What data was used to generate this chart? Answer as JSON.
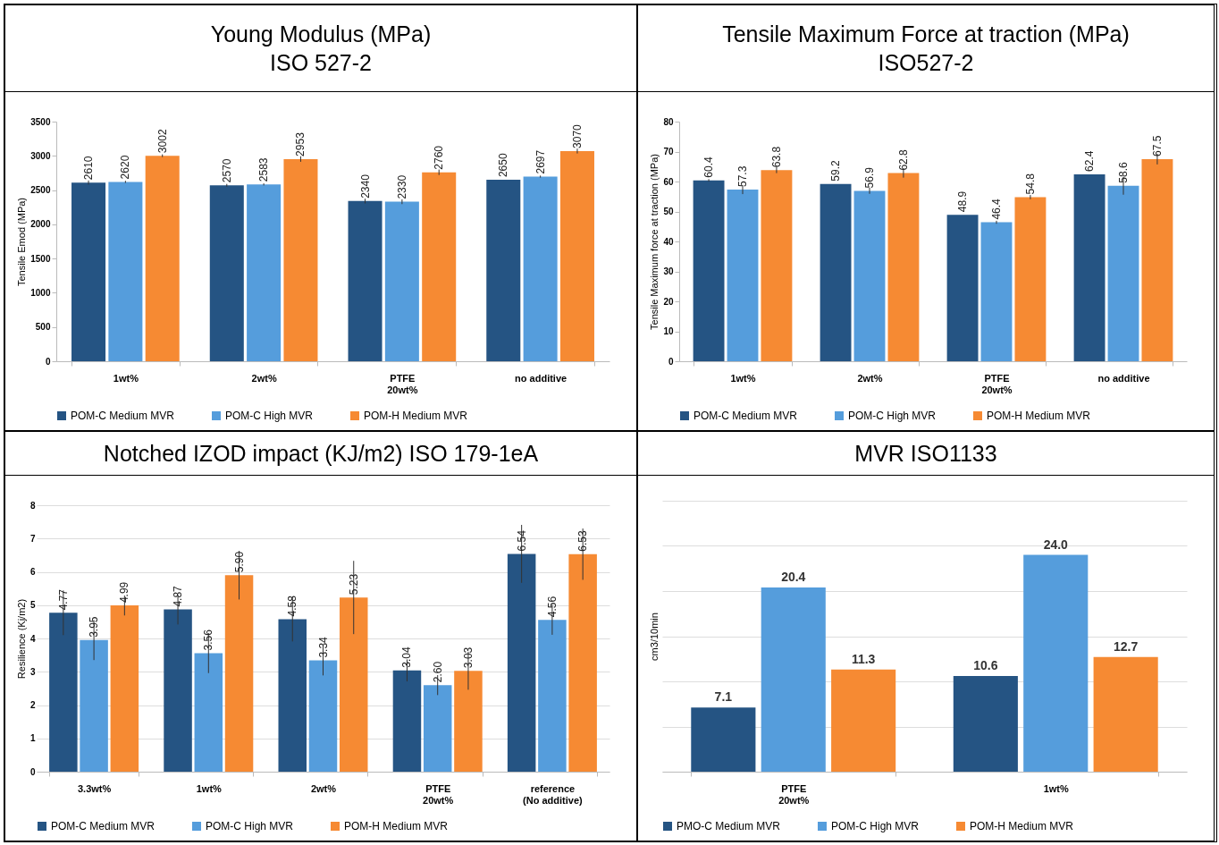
{
  "chart_data": [
    {
      "type": "bar",
      "title": "Young Modulus (MPa)",
      "subtitle": "ISO 527-2",
      "ylabel": "Tensile Emod (MPa)",
      "categories": [
        "1wt%",
        "2wt%",
        "PTFE\n20wt%",
        "no additive"
      ],
      "series": [
        {
          "name": "POM-C Medium MVR",
          "color": "#255483",
          "values": [
            2610,
            2570,
            2340,
            2650
          ],
          "errors": [
            30,
            20,
            35,
            null
          ]
        },
        {
          "name": "POM-C High MVR",
          "color": "#559ddc",
          "values": [
            2620,
            2583,
            2330,
            2697
          ],
          "errors": [
            15,
            15,
            35,
            15
          ]
        },
        {
          "name": "POM-H Medium MVR",
          "color": "#f68a33",
          "values": [
            3002,
            2953,
            2760,
            3070
          ],
          "errors": [
            20,
            40,
            40,
            35
          ]
        }
      ],
      "ylim": [
        0,
        3500
      ],
      "yticks": [
        0,
        500,
        1000,
        1500,
        2000,
        2500,
        3000,
        3500
      ],
      "grid": false,
      "legend": "bottom",
      "data_labels": true
    },
    {
      "type": "bar",
      "title": "Tensile Maximum Force at traction (MPa)",
      "subtitle": "ISO527-2",
      "ylabel": "Tensile Maximum force at traction (MPa)",
      "categories": [
        "1wt%",
        "2wt%",
        "PTFE\n20wt%",
        "no additive"
      ],
      "series": [
        {
          "name": "POM-C Medium MVR",
          "color": "#255483",
          "values": [
            60.4,
            59.2,
            48.9,
            62.4
          ],
          "errors": [
            0.4,
            null,
            null,
            null
          ]
        },
        {
          "name": "POM-C High MVR",
          "color": "#559ddc",
          "values": [
            57.3,
            56.9,
            46.4,
            58.6
          ],
          "errors": [
            1.5,
            1,
            0.5,
            3
          ]
        },
        {
          "name": "POM-H Medium MVR",
          "color": "#f68a33",
          "values": [
            63.8,
            62.8,
            54.8,
            67.5
          ],
          "errors": [
            1,
            1.5,
            0.7,
            1.8
          ]
        }
      ],
      "ylim": [
        0,
        80
      ],
      "yticks": [
        0,
        10,
        20,
        30,
        40,
        50,
        60,
        70,
        80
      ],
      "grid": false,
      "legend": "bottom",
      "data_labels": true
    },
    {
      "type": "bar",
      "title": "Notched IZOD impact (KJ/m2) ISO 179-1eA",
      "ylabel": "Resilience (Kj/m2)",
      "categories": [
        "3.3wt%",
        "1wt%",
        "2wt%",
        "PTFE\n20wt%",
        "reference\n(No additive)"
      ],
      "series": [
        {
          "name": "POM-C Medium MVR",
          "color": "#255483",
          "values": [
            4.77,
            4.87,
            4.58,
            3.04,
            6.54
          ],
          "errors": [
            0.67,
            0.45,
            0.67,
            0.33,
            0.87
          ],
          "value_labels": [
            "4.77",
            "4.87",
            "4.58",
            "3.04",
            "6.54"
          ]
        },
        {
          "name": "POM-C High MVR",
          "color": "#559ddc",
          "values": [
            3.95,
            3.56,
            3.34,
            2.6,
            4.56
          ],
          "errors": [
            0.6,
            0.6,
            0.45,
            0.3,
            0.45
          ],
          "value_labels": [
            "3.95",
            "3.56",
            "3.34",
            "2.60",
            "4.56"
          ]
        },
        {
          "name": "POM-H Medium MVR",
          "color": "#f68a33",
          "values": [
            4.99,
            5.9,
            5.23,
            3.03,
            6.53
          ],
          "errors": [
            0.3,
            0.73,
            1.1,
            0.57,
            0.77
          ],
          "value_labels": [
            "4.99",
            "5.90",
            "5.23",
            "3.03",
            "6.53"
          ]
        }
      ],
      "ylim": [
        0,
        8
      ],
      "yticks": [
        0,
        1,
        2,
        3,
        4,
        5,
        6,
        7,
        8
      ],
      "grid": "y",
      "legend": "bottom"
    },
    {
      "type": "bar",
      "title": "MVR ISO1133",
      "ylabel": "cm3/10min",
      "categories": [
        "PTFE\n20wt%",
        "1wt%"
      ],
      "series": [
        {
          "name": "PMO-C Medium MVR",
          "color": "#255483",
          "values": [
            7.1,
            10.6
          ],
          "value_labels": [
            "7.1",
            "10.6"
          ]
        },
        {
          "name": "POM-C High MVR",
          "color": "#559ddc",
          "values": [
            20.4,
            24.0
          ],
          "value_labels": [
            "20.4",
            "24.0"
          ]
        },
        {
          "name": "POM-H Medium MVR",
          "color": "#f68a33",
          "values": [
            11.3,
            12.7
          ],
          "value_labels": [
            "11.3",
            "12.7"
          ]
        }
      ],
      "ylim": [
        0,
        30
      ],
      "yticks": [
        {
          "value": 0,
          "label": null
        },
        {
          "value": 5,
          "label": null
        },
        {
          "value": 10,
          "label": null
        },
        {
          "value": 15,
          "label": null
        },
        {
          "value": 20,
          "label": null
        },
        {
          "value": 25,
          "label": null
        },
        {
          "value": 30,
          "label": null
        }
      ],
      "tick_labels": "x",
      "grid": "y",
      "legend": "bottom"
    }
  ]
}
